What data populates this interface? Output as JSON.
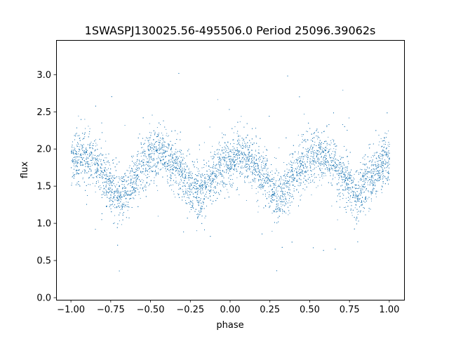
{
  "chart_data": {
    "type": "scatter",
    "title": "1SWASPJ130025.56-495506.0 Period 25096.39062s",
    "xlabel": "phase",
    "ylabel": "flux",
    "xlim": [
      -1.093,
      1.093
    ],
    "ylim": [
      -0.03,
      3.46
    ],
    "xticks": [
      -1.0,
      -0.75,
      -0.5,
      -0.25,
      0.0,
      0.25,
      0.5,
      0.75,
      1.0
    ],
    "xtick_labels": [
      "−1.00",
      "−0.75",
      "−0.50",
      "−0.25",
      "0.00",
      "0.25",
      "0.50",
      "0.75",
      "1.00"
    ],
    "yticks": [
      0.0,
      0.5,
      1.0,
      1.5,
      2.0,
      2.5,
      3.0
    ],
    "ytick_labels": [
      "0.0",
      "0.5",
      "1.0",
      "1.5",
      "2.0",
      "2.5",
      "3.0"
    ],
    "grid": false,
    "color": "#1f77b4",
    "series": [
      {
        "name": "flux",
        "note_binned_mean": "mean flux per 0.05 phase bin, phase -1.00 to 1.00",
        "phase": [
          -1.0,
          -0.95,
          -0.9,
          -0.85,
          -0.8,
          -0.75,
          -0.7,
          -0.65,
          -0.6,
          -0.55,
          -0.5,
          -0.45,
          -0.4,
          -0.35,
          -0.3,
          -0.25,
          -0.2,
          -0.15,
          -0.1,
          -0.05,
          0.0,
          0.05,
          0.1,
          0.15,
          0.2,
          0.25,
          0.3,
          0.35,
          0.4,
          0.45,
          0.5,
          0.55,
          0.6,
          0.65,
          0.7,
          0.75,
          0.8,
          0.85,
          0.9,
          0.95,
          1.0
        ],
        "flux": [
          1.85,
          1.9,
          1.88,
          1.8,
          1.65,
          1.5,
          1.35,
          1.45,
          1.65,
          1.8,
          1.9,
          1.95,
          1.9,
          1.8,
          1.65,
          1.5,
          1.42,
          1.5,
          1.65,
          1.8,
          1.85,
          1.9,
          1.88,
          1.8,
          1.65,
          1.5,
          1.35,
          1.45,
          1.65,
          1.8,
          1.9,
          1.95,
          1.9,
          1.8,
          1.65,
          1.5,
          1.42,
          1.5,
          1.65,
          1.8,
          1.85
        ],
        "scatter_std": 0.17,
        "n_points": 9000
      }
    ]
  }
}
